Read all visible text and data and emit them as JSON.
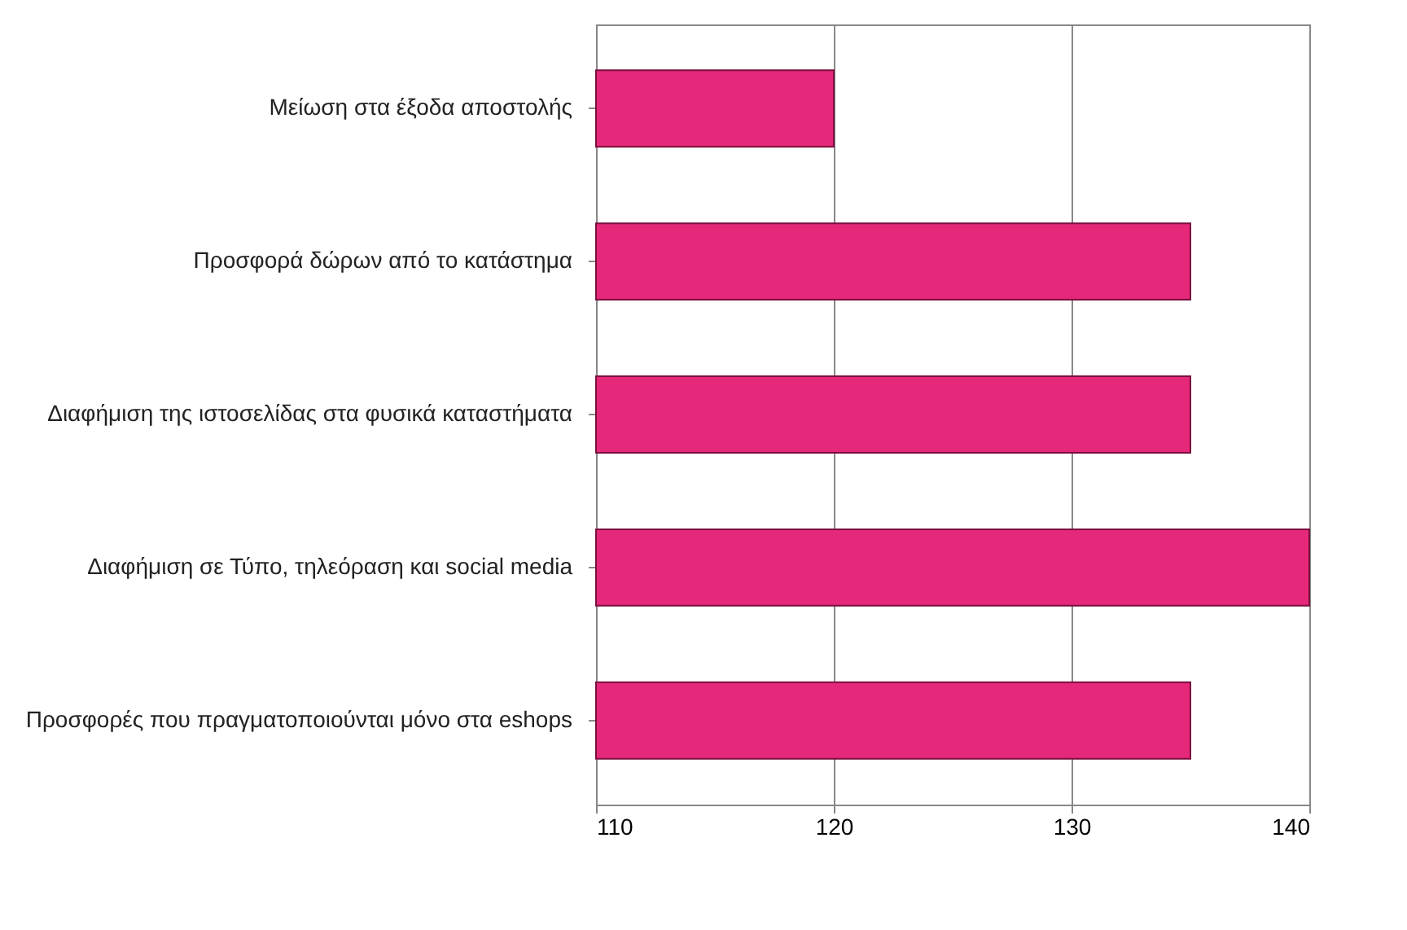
{
  "chart_data": {
    "type": "bar",
    "orientation": "horizontal",
    "categories": [
      "Μείωση στα έξοδα αποστολής",
      "Προσφορά δώρων από το κατάστημα",
      "Διαφήμιση της ιστοσελίδας στα φυσικά καταστήματα",
      "Διαφήμιση σε Τύπο, τηλεόραση και social media",
      "Προσφορές που πραγματοποιούνται μόνο στα eshops"
    ],
    "values": [
      120,
      135,
      135,
      140,
      135
    ],
    "color": "#e6287a",
    "xlim": [
      110,
      140
    ],
    "xticks": [
      110,
      120,
      130,
      140
    ],
    "grid": "x"
  }
}
